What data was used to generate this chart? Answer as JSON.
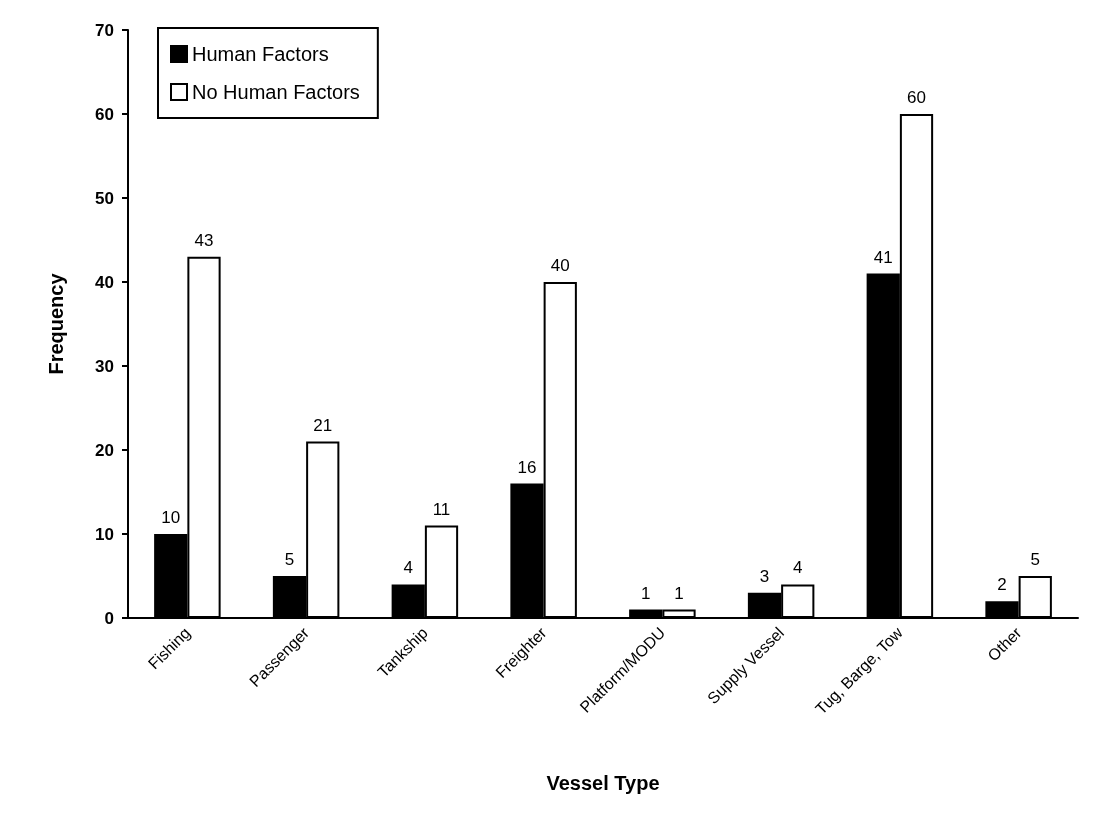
{
  "chart_data": {
    "type": "bar",
    "xlabel": "Vessel Type",
    "ylabel": "Frequency",
    "categories": [
      "Fishing",
      "Passenger",
      "Tankship",
      "Freighter",
      "Platform/MODU",
      "Supply Vessel",
      "Tug, Barge, Tow",
      "Other"
    ],
    "series": [
      {
        "name": "Human Factors",
        "color": "#000000",
        "values": [
          10,
          5,
          4,
          16,
          1,
          3,
          41,
          2
        ]
      },
      {
        "name": "No Human Factors",
        "color": "#ffffff",
        "values": [
          43,
          21,
          11,
          40,
          1,
          4,
          60,
          5
        ]
      }
    ],
    "ylim": [
      0,
      70
    ],
    "yticks": [
      0,
      10,
      20,
      30,
      40,
      50,
      60,
      70
    ],
    "data_labels": true,
    "legend": "top left",
    "grid": false
  }
}
